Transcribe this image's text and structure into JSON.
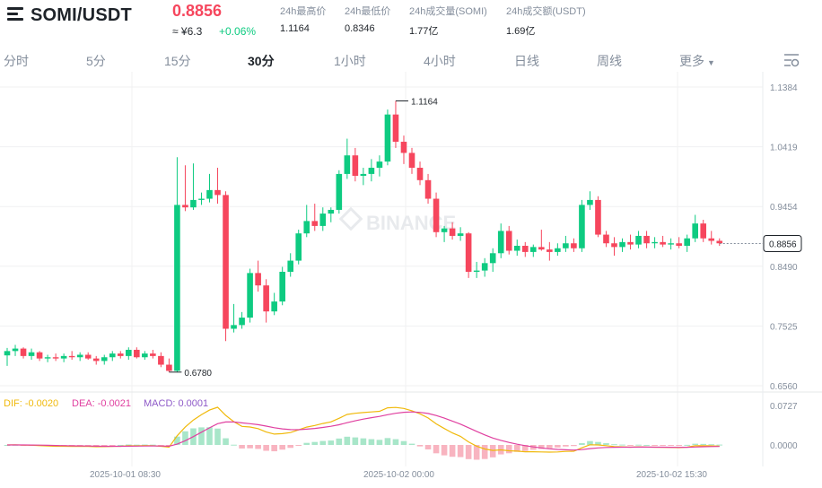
{
  "header": {
    "pair": "SOMI/USDT",
    "price": "0.8856",
    "cny_price": "≈ ¥6.3",
    "change": "+0.06%",
    "stats": [
      {
        "label": "24h最高价",
        "value": "1.1164"
      },
      {
        "label": "24h最低价",
        "value": "0.8346"
      },
      {
        "label": "24h成交量(SOMI)",
        "value": "1.77亿"
      },
      {
        "label": "24h成交额(USDT)",
        "value": "1.69亿"
      }
    ]
  },
  "tabs": [
    "分时",
    "5分",
    "15分",
    "30分",
    "1小时",
    "4小时",
    "日线",
    "周线",
    "更多"
  ],
  "active_tab": "30分",
  "colors": {
    "up": "#0ecb81",
    "down": "#f6465d",
    "dif": "#f0b90b",
    "dea": "#e040a0",
    "macd": "#8e5ac8"
  },
  "watermark": "BINANCE",
  "chart_data": {
    "type": "candlestick",
    "price_axis": [
      "1.1384",
      "1.0419",
      "0.9454",
      "0.8490",
      "0.7525",
      "0.6560"
    ],
    "current_price_label": "0.8856",
    "annotations": {
      "high": "1.1164",
      "low": "0.6780"
    },
    "time_labels": [
      "2025-10-01 08:30",
      "2025-10-02 00:00",
      "2025-10-02 15:30"
    ],
    "macd_axis": [
      "0.0727",
      "0.0000"
    ],
    "macd_legend": {
      "dif": "DIF: -0.0020",
      "dea": "DEA: -0.0021",
      "macd": "MACD: 0.0001"
    },
    "ohlc": [
      [
        0.705,
        0.717,
        0.688,
        0.712
      ],
      [
        0.712,
        0.722,
        0.704,
        0.716
      ],
      [
        0.716,
        0.718,
        0.7,
        0.704
      ],
      [
        0.704,
        0.716,
        0.698,
        0.71
      ],
      [
        0.71,
        0.712,
        0.696,
        0.7
      ],
      [
        0.7,
        0.706,
        0.694,
        0.702
      ],
      [
        0.702,
        0.708,
        0.696,
        0.7
      ],
      [
        0.7,
        0.708,
        0.694,
        0.704
      ],
      [
        0.704,
        0.712,
        0.698,
        0.702
      ],
      [
        0.702,
        0.71,
        0.696,
        0.706
      ],
      [
        0.706,
        0.71,
        0.698,
        0.7
      ],
      [
        0.7,
        0.704,
        0.69,
        0.696
      ],
      [
        0.696,
        0.706,
        0.69,
        0.702
      ],
      [
        0.702,
        0.712,
        0.696,
        0.708
      ],
      [
        0.708,
        0.712,
        0.7,
        0.704
      ],
      [
        0.704,
        0.718,
        0.698,
        0.714
      ],
      [
        0.714,
        0.718,
        0.7,
        0.702
      ],
      [
        0.702,
        0.712,
        0.698,
        0.708
      ],
      [
        0.708,
        0.714,
        0.7,
        0.704
      ],
      [
        0.704,
        0.71,
        0.686,
        0.69
      ],
      [
        0.69,
        0.7,
        0.678,
        0.68
      ],
      [
        0.68,
        1.025,
        0.678,
        0.948
      ],
      [
        0.948,
        1.012,
        0.938,
        0.944
      ],
      [
        0.944,
        1.015,
        0.94,
        0.956
      ],
      [
        0.956,
        0.968,
        0.948,
        0.958
      ],
      [
        0.958,
        0.998,
        0.952,
        0.972
      ],
      [
        0.972,
        1.008,
        0.95,
        0.964
      ],
      [
        0.964,
        0.97,
        0.728,
        0.748
      ],
      [
        0.748,
        0.788,
        0.742,
        0.754
      ],
      [
        0.754,
        0.775,
        0.748,
        0.766
      ],
      [
        0.766,
        0.845,
        0.758,
        0.838
      ],
      [
        0.838,
        0.858,
        0.808,
        0.818
      ],
      [
        0.818,
        0.828,
        0.758,
        0.776
      ],
      [
        0.776,
        0.806,
        0.77,
        0.792
      ],
      [
        0.792,
        0.848,
        0.786,
        0.84
      ],
      [
        0.84,
        0.87,
        0.832,
        0.858
      ],
      [
        0.858,
        0.908,
        0.852,
        0.902
      ],
      [
        0.902,
        0.948,
        0.896,
        0.922
      ],
      [
        0.922,
        0.95,
        0.906,
        0.914
      ],
      [
        0.914,
        0.944,
        0.906,
        0.934
      ],
      [
        0.934,
        0.944,
        0.92,
        0.94
      ],
      [
        0.94,
        1.004,
        0.934,
        0.998
      ],
      [
        0.998,
        1.055,
        0.99,
        1.028
      ],
      [
        1.028,
        1.04,
        0.986,
        0.995
      ],
      [
        0.995,
        1.008,
        0.98,
        0.998
      ],
      [
        0.998,
        1.022,
        0.986,
        1.008
      ],
      [
        1.008,
        1.028,
        0.994,
        1.018
      ],
      [
        1.018,
        1.102,
        1.012,
        1.094
      ],
      [
        1.094,
        1.116,
        1.04,
        1.05
      ],
      [
        1.05,
        1.06,
        1.014,
        1.032
      ],
      [
        1.032,
        1.04,
        0.998,
        1.008
      ],
      [
        1.008,
        1.018,
        0.98,
        0.988
      ],
      [
        0.988,
        0.998,
        0.95,
        0.958
      ],
      [
        0.958,
        0.968,
        0.896,
        0.904
      ],
      [
        0.904,
        0.914,
        0.888,
        0.91
      ],
      [
        0.91,
        0.92,
        0.892,
        0.898
      ],
      [
        0.898,
        0.912,
        0.89,
        0.902
      ],
      [
        0.902,
        0.904,
        0.83,
        0.84
      ],
      [
        0.84,
        0.856,
        0.83,
        0.842
      ],
      [
        0.842,
        0.862,
        0.832,
        0.854
      ],
      [
        0.854,
        0.878,
        0.84,
        0.87
      ],
      [
        0.87,
        0.918,
        0.862,
        0.906
      ],
      [
        0.906,
        0.914,
        0.868,
        0.874
      ],
      [
        0.874,
        0.892,
        0.866,
        0.882
      ],
      [
        0.882,
        0.888,
        0.864,
        0.872
      ],
      [
        0.872,
        0.884,
        0.864,
        0.88
      ],
      [
        0.88,
        0.908,
        0.874,
        0.876
      ],
      [
        0.876,
        0.888,
        0.858,
        0.872
      ],
      [
        0.872,
        0.886,
        0.866,
        0.878
      ],
      [
        0.878,
        0.898,
        0.872,
        0.886
      ],
      [
        0.886,
        0.894,
        0.872,
        0.878
      ],
      [
        0.878,
        0.956,
        0.872,
        0.948
      ],
      [
        0.948,
        0.97,
        0.94,
        0.956
      ],
      [
        0.956,
        0.962,
        0.896,
        0.9
      ],
      [
        0.9,
        0.906,
        0.88,
        0.886
      ],
      [
        0.886,
        0.896,
        0.866,
        0.88
      ],
      [
        0.88,
        0.894,
        0.872,
        0.888
      ],
      [
        0.888,
        0.9,
        0.876,
        0.884
      ],
      [
        0.884,
        0.906,
        0.878,
        0.898
      ],
      [
        0.898,
        0.906,
        0.878,
        0.886
      ],
      [
        0.886,
        0.896,
        0.878,
        0.888
      ],
      [
        0.888,
        0.898,
        0.88,
        0.884
      ],
      [
        0.884,
        0.894,
        0.876,
        0.886
      ],
      [
        0.886,
        0.896,
        0.878,
        0.882
      ],
      [
        0.882,
        0.9,
        0.872,
        0.894
      ],
      [
        0.894,
        0.932,
        0.888,
        0.918
      ],
      [
        0.918,
        0.924,
        0.888,
        0.894
      ],
      [
        0.894,
        0.906,
        0.884,
        0.89
      ],
      [
        0.89,
        0.894,
        0.882,
        0.886
      ]
    ]
  }
}
